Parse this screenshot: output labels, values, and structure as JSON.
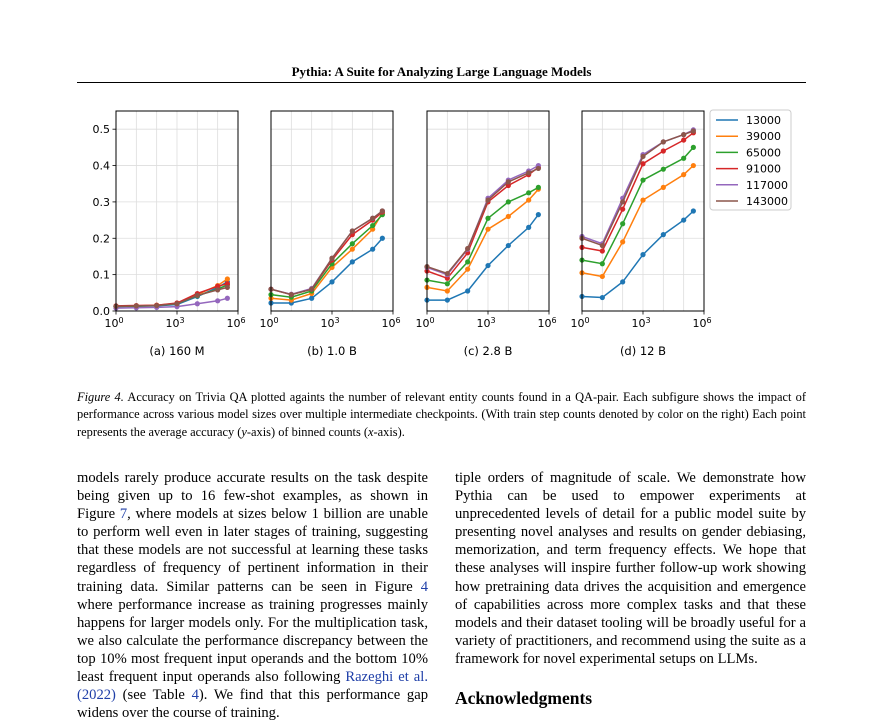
{
  "header": {
    "title": "Pythia: A Suite for Analyzing Large Language Models"
  },
  "figure": {
    "legend": [
      {
        "label": "13000",
        "color": "#1f77b4"
      },
      {
        "label": "39000",
        "color": "#ff7f0e"
      },
      {
        "label": "65000",
        "color": "#2ca02c"
      },
      {
        "label": "91000",
        "color": "#d62728"
      },
      {
        "label": "117000",
        "color": "#9467bd"
      },
      {
        "label": "143000",
        "color": "#8c564b"
      }
    ],
    "y_ticks": [
      "0.0",
      "0.1",
      "0.2",
      "0.3",
      "0.4",
      "0.5"
    ],
    "x_tick_base": "10",
    "x_tick_exps": [
      "0",
      "3",
      "6"
    ]
  },
  "chart_data": [
    {
      "type": "line",
      "title": "(a) 160 M",
      "xscale": "log",
      "xlim": [
        1,
        1000000
      ],
      "ylim": [
        0.0,
        0.55
      ],
      "grid": true,
      "x": [
        1,
        10,
        100,
        1000,
        10000,
        100000,
        300000
      ],
      "series": [
        {
          "name": "13000",
          "values": [
            0.012,
            0.013,
            0.014,
            0.018,
            0.04,
            0.065,
            0.08
          ]
        },
        {
          "name": "39000",
          "values": [
            0.013,
            0.014,
            0.016,
            0.021,
            0.045,
            0.07,
            0.088
          ]
        },
        {
          "name": "65000",
          "values": [
            0.012,
            0.013,
            0.015,
            0.02,
            0.042,
            0.06,
            0.072
          ]
        },
        {
          "name": "91000",
          "values": [
            0.014,
            0.015,
            0.016,
            0.022,
            0.048,
            0.068,
            0.075
          ]
        },
        {
          "name": "117000",
          "values": [
            0.008,
            0.009,
            0.01,
            0.012,
            0.02,
            0.028,
            0.035
          ]
        },
        {
          "name": "143000",
          "values": [
            0.013,
            0.014,
            0.015,
            0.02,
            0.043,
            0.058,
            0.065
          ]
        }
      ]
    },
    {
      "type": "line",
      "title": "(b) 1.0 B",
      "xscale": "log",
      "xlim": [
        1,
        1000000
      ],
      "ylim": [
        0.0,
        0.55
      ],
      "grid": true,
      "x": [
        1,
        10,
        100,
        1000,
        10000,
        100000,
        300000
      ],
      "series": [
        {
          "name": "13000",
          "values": [
            0.022,
            0.022,
            0.035,
            0.08,
            0.135,
            0.17,
            0.2
          ]
        },
        {
          "name": "39000",
          "values": [
            0.035,
            0.03,
            0.048,
            0.12,
            0.17,
            0.225,
            0.27
          ]
        },
        {
          "name": "65000",
          "values": [
            0.045,
            0.038,
            0.055,
            0.13,
            0.185,
            0.235,
            0.265
          ]
        },
        {
          "name": "91000",
          "values": [
            0.06,
            0.045,
            0.06,
            0.14,
            0.21,
            0.25,
            0.272
          ]
        },
        {
          "name": "117000",
          "values": [
            0.06,
            0.046,
            0.062,
            0.145,
            0.22,
            0.255,
            0.275
          ]
        },
        {
          "name": "143000",
          "values": [
            0.06,
            0.045,
            0.06,
            0.145,
            0.22,
            0.255,
            0.275
          ]
        }
      ]
    },
    {
      "type": "line",
      "title": "(c) 2.8 B",
      "xscale": "log",
      "xlim": [
        1,
        1000000
      ],
      "ylim": [
        0.0,
        0.55
      ],
      "grid": true,
      "x": [
        1,
        10,
        100,
        1000,
        10000,
        100000,
        300000
      ],
      "series": [
        {
          "name": "13000",
          "values": [
            0.03,
            0.03,
            0.055,
            0.125,
            0.18,
            0.23,
            0.265
          ]
        },
        {
          "name": "39000",
          "values": [
            0.065,
            0.055,
            0.115,
            0.225,
            0.26,
            0.305,
            0.335
          ]
        },
        {
          "name": "65000",
          "values": [
            0.085,
            0.075,
            0.135,
            0.255,
            0.3,
            0.325,
            0.34
          ]
        },
        {
          "name": "91000",
          "values": [
            0.11,
            0.09,
            0.16,
            0.3,
            0.345,
            0.375,
            0.395
          ]
        },
        {
          "name": "117000",
          "values": [
            0.12,
            0.1,
            0.17,
            0.31,
            0.36,
            0.385,
            0.4
          ]
        },
        {
          "name": "143000",
          "values": [
            0.122,
            0.103,
            0.172,
            0.305,
            0.355,
            0.38,
            0.392
          ]
        }
      ]
    },
    {
      "type": "line",
      "title": "(d) 12 B",
      "xscale": "log",
      "xlim": [
        1,
        1000000
      ],
      "ylim": [
        0.0,
        0.55
      ],
      "grid": true,
      "x": [
        1,
        10,
        100,
        1000,
        10000,
        100000,
        300000
      ],
      "series": [
        {
          "name": "13000",
          "values": [
            0.04,
            0.037,
            0.08,
            0.155,
            0.21,
            0.25,
            0.275
          ]
        },
        {
          "name": "39000",
          "values": [
            0.105,
            0.095,
            0.19,
            0.305,
            0.34,
            0.375,
            0.4
          ]
        },
        {
          "name": "65000",
          "values": [
            0.14,
            0.13,
            0.24,
            0.36,
            0.39,
            0.42,
            0.45
          ]
        },
        {
          "name": "91000",
          "values": [
            0.175,
            0.165,
            0.28,
            0.405,
            0.44,
            0.47,
            0.49
          ]
        },
        {
          "name": "117000",
          "values": [
            0.205,
            0.185,
            0.31,
            0.43,
            0.465,
            0.485,
            0.498
          ]
        },
        {
          "name": "143000",
          "values": [
            0.2,
            0.18,
            0.3,
            0.425,
            0.465,
            0.485,
            0.495
          ]
        }
      ]
    }
  ],
  "caption": {
    "label": "Figure 4.",
    "text": " Accuracy on Trivia QA plotted againts the number of relevant entity counts found in a QA-pair. Each subfigure shows the impact of performance across various model sizes over multiple intermediate checkpoints. (With train step counts denoted by color on the right) Each point represents the average accuracy (",
    "y_var": "y",
    "mid": "-axis) of binned counts (",
    "x_var": "x",
    "end": "-axis)."
  },
  "left_column": {
    "p1": "models rarely produce accurate results on the task despite being given up to 16 few-shot examples, as shown in Figure ",
    "ref_fig7": "7",
    "p2": ", where models at sizes below 1 billion are unable to perform well even in later stages of training, suggesting that these models are not successful at learning these tasks regardless of frequency of pertinent information in their training data. Similar patterns can be seen in Figure ",
    "ref_fig4": "4",
    "p3": " where performance increase as training progresses mainly happens for larger models only. For the multiplication task, we also calculate the performance discrepancy between the top 10% most frequent input operands and the bottom 10% least frequent input operands also following ",
    "ref_cite": "Razeghi et al. (2022)",
    "p4": " (see Table ",
    "ref_table4": "4",
    "p5": "). We find that this performance gap widens over the course of training."
  },
  "right_column": {
    "text": "tiple orders of magnitude of scale. We demonstrate how Pythia can be used to empower experiments at unprecedented levels of detail for a public model suite by presenting novel analyses and results on gender debiasing, memorization, and term frequency effects. We hope that these analyses will inspire further follow-up work showing how pretraining data drives the acquisition and emergence of capabilities across more complex tasks and that these models and their dataset tooling will be broadly useful for a variety of practitioners, and recommend using the suite as a framework for novel experimental setups on LLMs."
  },
  "section": {
    "acknowledgments": "Acknowledgments"
  }
}
